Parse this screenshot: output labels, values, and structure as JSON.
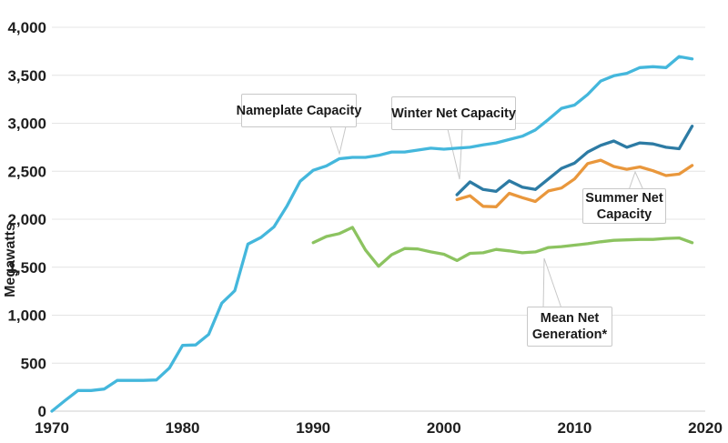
{
  "chart_data": {
    "type": "line",
    "title": "",
    "xlabel": "",
    "ylabel": "Megawatts",
    "xlim": [
      1970,
      2020
    ],
    "ylim": [
      0,
      4000
    ],
    "grid": "horizontal",
    "legend_position": "inline-callouts",
    "y_ticks": [
      "0",
      "500",
      "1,000",
      "1,500",
      "2,000",
      "2,500",
      "3,000",
      "3,500",
      "4,000"
    ],
    "x_ticks": [
      "1970",
      "1980",
      "1990",
      "2000",
      "2010",
      "2020"
    ],
    "series": [
      {
        "name": "Nameplate Capacity",
        "color": "#44b7dc",
        "start_year": 1970,
        "values": [
          0,
          110,
          215,
          215,
          230,
          320,
          320,
          320,
          325,
          450,
          685,
          690,
          800,
          1125,
          1255,
          1740,
          1810,
          1920,
          2140,
          2395,
          2510,
          2555,
          2630,
          2645,
          2645,
          2665,
          2700,
          2700,
          2720,
          2740,
          2730,
          2740,
          2750,
          2775,
          2795,
          2830,
          2865,
          2930,
          3040,
          3155,
          3190,
          3300,
          3440,
          3495,
          3520,
          3580,
          3590,
          3580,
          3695,
          3670
        ]
      },
      {
        "name": "Winter Net Capacity",
        "color": "#2d7ba4",
        "start_year": 2001,
        "values": [
          2255,
          2390,
          2310,
          2290,
          2400,
          2335,
          2310,
          2420,
          2530,
          2585,
          2700,
          2770,
          2815,
          2750,
          2795,
          2785,
          2750,
          2735,
          2970
        ]
      },
      {
        "name": "Summer Net Capacity",
        "color": "#e9973c",
        "start_year": 2001,
        "values": [
          2205,
          2245,
          2135,
          2130,
          2270,
          2225,
          2185,
          2295,
          2325,
          2420,
          2580,
          2615,
          2550,
          2520,
          2545,
          2505,
          2455,
          2470,
          2560
        ]
      },
      {
        "name": "Mean Net Generation*",
        "color": "#8cc360",
        "start_year": 1990,
        "values": [
          1755,
          1820,
          1850,
          1915,
          1680,
          1510,
          1630,
          1695,
          1690,
          1660,
          1635,
          1570,
          1645,
          1650,
          1685,
          1670,
          1650,
          1660,
          1705,
          1715,
          1730,
          1745,
          1765,
          1780,
          1785,
          1790,
          1790,
          1800,
          1805,
          1755
        ]
      }
    ]
  },
  "callouts": {
    "nameplate": {
      "line1": "Nameplate Capacity"
    },
    "winter": {
      "line1": "Winter Net Capacity"
    },
    "summer": {
      "line1": "Summer Net",
      "line2": "Capacity"
    },
    "mean": {
      "line1": "Mean Net",
      "line2": "Generation*"
    }
  }
}
